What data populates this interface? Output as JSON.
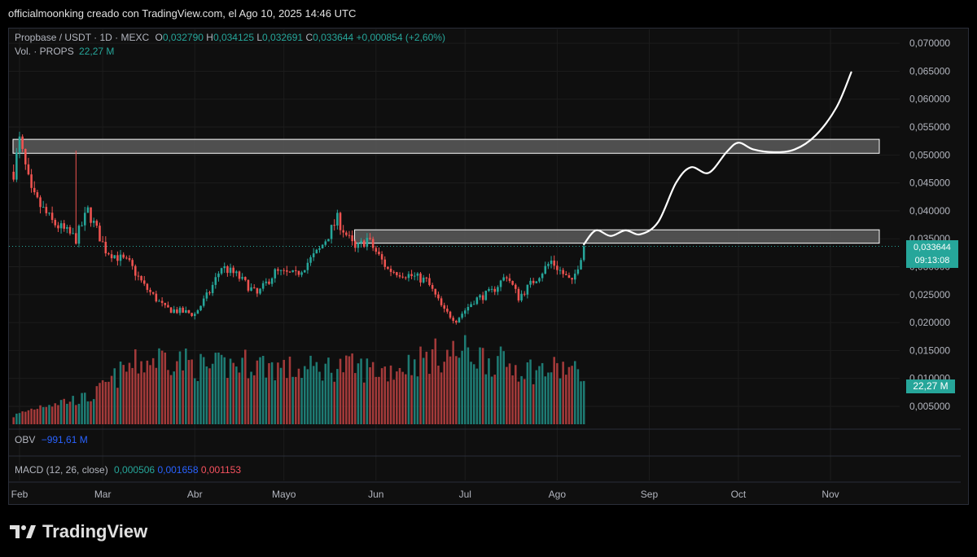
{
  "header": {
    "caption": "officialmoonking creado con TradingView.com, el Ago 10, 2025 14:46 UTC"
  },
  "legend": {
    "symbol": "Propbase / USDT · 1D · MEXC",
    "o_label": "O",
    "o_value": "0,032790",
    "h_label": "H",
    "h_value": "0,034125",
    "l_label": "L",
    "l_value": "0,032691",
    "c_label": "C",
    "c_value": "0,033644",
    "change": "+0,000854 (+2,60%)",
    "vol_label": "Vol. · PROPS",
    "vol_value": "22,27 M",
    "obv_label": "OBV",
    "obv_value": "−991,61 M",
    "macd_label": "MACD (12, 26, close)",
    "macd_v1": "0,000506",
    "macd_v2": "0,001658",
    "macd_v3": "0,001153"
  },
  "badges": {
    "price": "0,033644",
    "countdown": "09:13:08",
    "volume": "22,27 M"
  },
  "brand": {
    "name": "TradingView"
  },
  "colors": {
    "up": "#26a69a",
    "down": "#ef5350",
    "up_vol": "#1e7b73",
    "down_vol": "#a33a3a",
    "zone": "#5a5a5a",
    "forecast": "#ffffff"
  },
  "chart_data": {
    "type": "candlestick",
    "symbol": "PROPS/USDT",
    "interval": "1D",
    "y_ticks": [
      "0,070000",
      "0,065000",
      "0,060000",
      "0,055000",
      "0,050000",
      "0,045000",
      "0,040000",
      "0,035000",
      "0,030000",
      "0,025000",
      "0,020000",
      "0,015000",
      "0,010000",
      "0,005000"
    ],
    "y_tick_values": [
      0.07,
      0.065,
      0.06,
      0.055,
      0.05,
      0.045,
      0.04,
      0.035,
      0.03,
      0.025,
      0.02,
      0.015,
      0.01,
      0.005
    ],
    "ylim": [
      0.0012,
      0.0725
    ],
    "x_labels": [
      "Feb",
      "Mar",
      "Abr",
      "Mayo",
      "Jun",
      "Jul",
      "Ago",
      "Sep",
      "Oct",
      "Nov"
    ],
    "x_label_dates": [
      "2025-02-01",
      "2025-03-01",
      "2025-04-01",
      "2025-05-01",
      "2025-06-01",
      "2025-07-01",
      "2025-08-01",
      "2025-09-01",
      "2025-10-01",
      "2025-11-01"
    ],
    "last_price": 0.033644,
    "zones": [
      {
        "from": "2025-02-01",
        "to": "2025-12-01",
        "low": 0.0503,
        "high": 0.0528
      },
      {
        "from": "2025-05-27",
        "to": "2025-12-01",
        "low": 0.0342,
        "high": 0.0366
      }
    ],
    "anchors": [
      {
        "date": "2025-01-30",
        "price": 0.047
      },
      {
        "date": "2025-02-01",
        "price": 0.0525
      },
      {
        "date": "2025-02-05",
        "price": 0.043
      },
      {
        "date": "2025-02-12",
        "price": 0.038
      },
      {
        "date": "2025-02-20",
        "price": 0.035
      },
      {
        "date": "2025-02-24",
        "price": 0.04
      },
      {
        "date": "2025-03-02",
        "price": 0.033
      },
      {
        "date": "2025-03-10",
        "price": 0.0305
      },
      {
        "date": "2025-03-15",
        "price": 0.0265
      },
      {
        "date": "2025-03-22",
        "price": 0.0225
      },
      {
        "date": "2025-04-01",
        "price": 0.0215
      },
      {
        "date": "2025-04-06",
        "price": 0.0255
      },
      {
        "date": "2025-04-10",
        "price": 0.03
      },
      {
        "date": "2025-04-15",
        "price": 0.0285
      },
      {
        "date": "2025-04-22",
        "price": 0.025
      },
      {
        "date": "2025-04-28",
        "price": 0.029
      },
      {
        "date": "2025-05-05",
        "price": 0.0285
      },
      {
        "date": "2025-05-13",
        "price": 0.033
      },
      {
        "date": "2025-05-19",
        "price": 0.0385
      },
      {
        "date": "2025-05-25",
        "price": 0.033
      },
      {
        "date": "2025-05-29",
        "price": 0.035
      },
      {
        "date": "2025-06-05",
        "price": 0.0295
      },
      {
        "date": "2025-06-12",
        "price": 0.0285
      },
      {
        "date": "2025-06-18",
        "price": 0.0275
      },
      {
        "date": "2025-06-24",
        "price": 0.022
      },
      {
        "date": "2025-06-28",
        "price": 0.0205
      },
      {
        "date": "2025-07-04",
        "price": 0.024
      },
      {
        "date": "2025-07-10",
        "price": 0.0255
      },
      {
        "date": "2025-07-15",
        "price": 0.0285
      },
      {
        "date": "2025-07-19",
        "price": 0.0245
      },
      {
        "date": "2025-07-25",
        "price": 0.028
      },
      {
        "date": "2025-07-30",
        "price": 0.031
      },
      {
        "date": "2025-08-06",
        "price": 0.027
      },
      {
        "date": "2025-08-10",
        "price": 0.03364
      }
    ],
    "volume": {
      "axis_max": 45000000,
      "anchors": [
        {
          "date": "2025-01-30",
          "value": 4000000
        },
        {
          "date": "2025-02-10",
          "value": 10000000
        },
        {
          "date": "2025-02-25",
          "value": 13000000
        },
        {
          "date": "2025-03-10",
          "value": 28000000
        },
        {
          "date": "2025-03-22",
          "value": 33000000
        },
        {
          "date": "2025-04-05",
          "value": 27000000
        },
        {
          "date": "2025-04-20",
          "value": 30000000
        },
        {
          "date": "2025-05-05",
          "value": 26000000
        },
        {
          "date": "2025-05-20",
          "value": 28000000
        },
        {
          "date": "2025-06-05",
          "value": 26000000
        },
        {
          "date": "2025-06-20",
          "value": 33000000
        },
        {
          "date": "2025-07-01",
          "value": 35000000
        },
        {
          "date": "2025-07-15",
          "value": 29000000
        },
        {
          "date": "2025-07-25",
          "value": 26000000
        },
        {
          "date": "2025-08-05",
          "value": 27000000
        },
        {
          "date": "2025-08-10",
          "value": 22270000
        }
      ]
    },
    "forecast_path": [
      {
        "date": "2025-08-10",
        "price": 0.034
      },
      {
        "date": "2025-08-14",
        "price": 0.0365
      },
      {
        "date": "2025-08-19",
        "price": 0.0355
      },
      {
        "date": "2025-08-24",
        "price": 0.0365
      },
      {
        "date": "2025-08-29",
        "price": 0.0358
      },
      {
        "date": "2025-09-04",
        "price": 0.038
      },
      {
        "date": "2025-09-10",
        "price": 0.045
      },
      {
        "date": "2025-09-15",
        "price": 0.0478
      },
      {
        "date": "2025-09-21",
        "price": 0.0468
      },
      {
        "date": "2025-09-27",
        "price": 0.0505
      },
      {
        "date": "2025-10-01",
        "price": 0.0522
      },
      {
        "date": "2025-10-06",
        "price": 0.051
      },
      {
        "date": "2025-10-13",
        "price": 0.0505
      },
      {
        "date": "2025-10-20",
        "price": 0.051
      },
      {
        "date": "2025-10-27",
        "price": 0.0535
      },
      {
        "date": "2025-11-03",
        "price": 0.0585
      },
      {
        "date": "2025-11-08",
        "price": 0.0648
      }
    ]
  }
}
